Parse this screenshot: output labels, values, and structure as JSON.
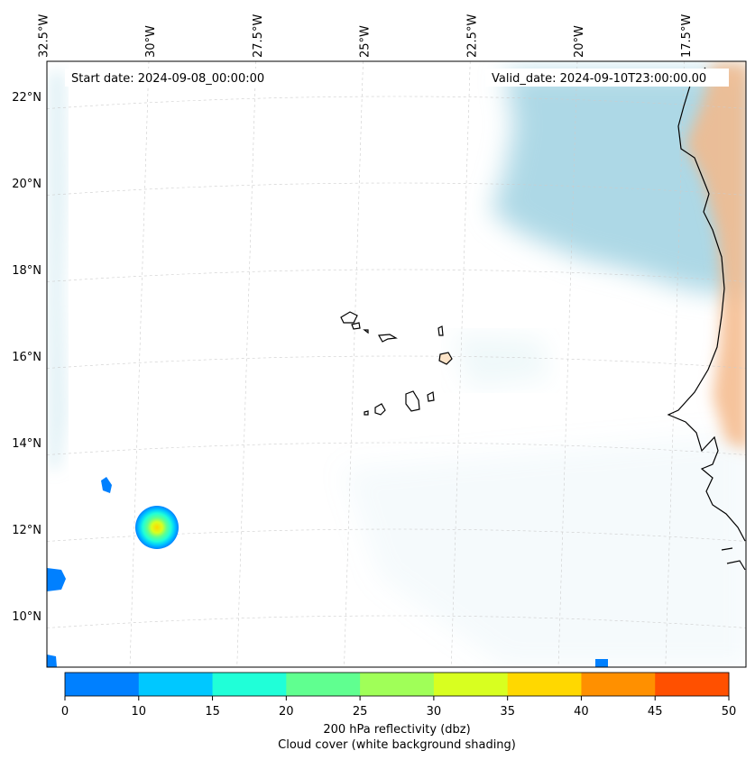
{
  "map": {
    "start_date": "Start date: 2024-09-08_00:00:00",
    "valid_date": "Valid_date: 2024-09-10T23:00:00.00",
    "top_axis_labels": [
      {
        "text": "32.5°W",
        "lon": -32.5
      },
      {
        "text": "30°W",
        "lon": -30
      },
      {
        "text": "27.5°W",
        "lon": -27.5
      },
      {
        "text": "25°W",
        "lon": -25
      },
      {
        "text": "22.5°W",
        "lon": -22.5
      },
      {
        "text": "20°W",
        "lon": -20
      },
      {
        "text": "17.5°W",
        "lon": -17.5
      }
    ],
    "left_axis_labels": [
      {
        "text": "22°N",
        "lat": 22
      },
      {
        "text": "20°N",
        "lat": 20
      },
      {
        "text": "18°N",
        "lat": 18
      },
      {
        "text": "16°N",
        "lat": 16
      },
      {
        "text": "14°N",
        "lat": 14
      },
      {
        "text": "12°N",
        "lat": 12
      },
      {
        "text": "10°N",
        "lat": 10
      }
    ],
    "colors": {
      "cloud": "#a9d6e5",
      "land_warm": "#f5b98a",
      "coast": "#000000",
      "grid": "#cccccc"
    }
  },
  "colorbar": {
    "ticks": [
      "0",
      "10",
      "15",
      "20",
      "25",
      "30",
      "35",
      "40",
      "45",
      "50"
    ],
    "colors": [
      "#0080ff",
      "#00c8ff",
      "#20ffd8",
      "#60ff90",
      "#a0ff58",
      "#d8ff20",
      "#ffd800",
      "#ff9000",
      "#ff5000"
    ],
    "label_line1": "200 hPa reflectivity (dbz)",
    "label_line2": "Cloud cover (white background shading)"
  }
}
